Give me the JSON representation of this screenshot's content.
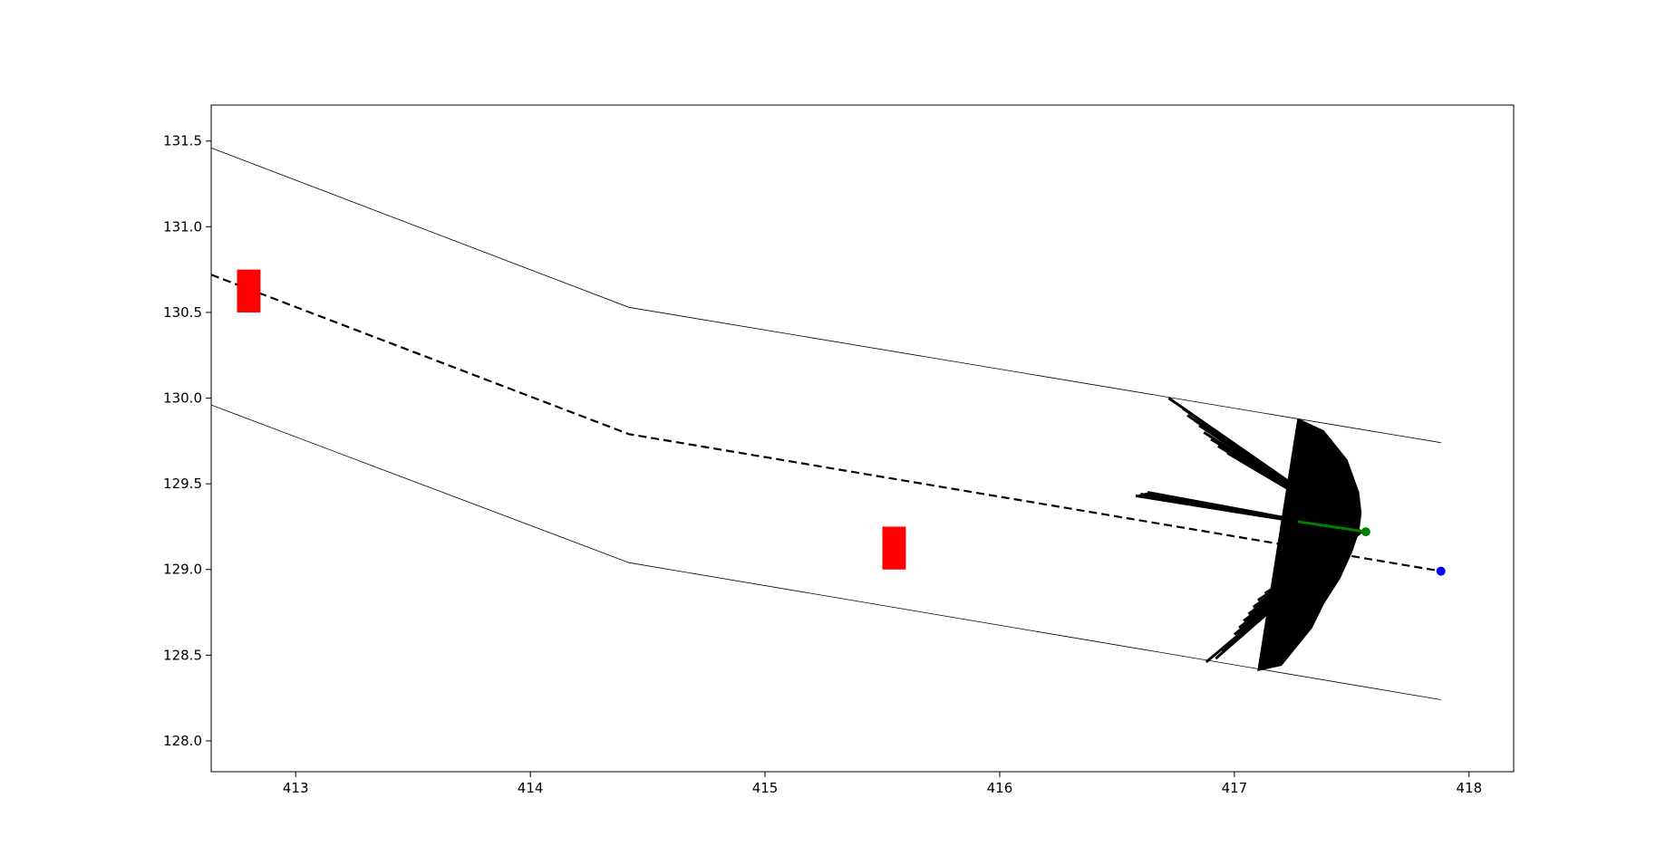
{
  "chart_data": {
    "type": "line",
    "title": "",
    "xlabel": "",
    "ylabel": "",
    "xlim": [
      412.64,
      418.19
    ],
    "ylim": [
      127.82,
      131.71
    ],
    "grid": false,
    "legend": "none",
    "x_ticks": [
      "413",
      "414",
      "415",
      "416",
      "417",
      "418"
    ],
    "y_ticks": [
      "128.0",
      "128.5",
      "129.0",
      "129.5",
      "130.0",
      "130.5",
      "131.0",
      "131.5"
    ],
    "x_tick_values": [
      413,
      414,
      415,
      416,
      417,
      418
    ],
    "y_tick_values": [
      128.0,
      128.5,
      129.0,
      129.5,
      130.0,
      130.5,
      131.0,
      131.5
    ],
    "boundary_upper": {
      "x": [
        412.64,
        414.42,
        417.88
      ],
      "y": [
        131.46,
        130.53,
        129.74
      ]
    },
    "boundary_lower": {
      "x": [
        412.64,
        414.42,
        417.88
      ],
      "y": [
        129.96,
        129.04,
        128.24
      ]
    },
    "reference_path": {
      "x": [
        412.64,
        414.42,
        417.88
      ],
      "y": [
        130.72,
        129.79,
        128.99
      ]
    },
    "obstacles": [
      {
        "x": [
          412.75,
          412.85
        ],
        "y": [
          130.5,
          130.75
        ],
        "color": "#ff0000"
      },
      {
        "x": [
          415.5,
          415.6
        ],
        "y": [
          129.0,
          129.25
        ],
        "color": "#ff0000"
      }
    ],
    "start_point": {
      "x": 417.56,
      "y": 129.22,
      "color": "#008000"
    },
    "goal_point": {
      "x": 417.88,
      "y": 128.99,
      "color": "#0000ff"
    },
    "best_trajectory": {
      "x": [
        417.27,
        417.56
      ],
      "y": [
        129.28,
        129.22
      ],
      "color": "#008000"
    },
    "sampled_trajectories": {
      "origin": {
        "x": 417.54,
        "y": 129.22
      },
      "color": "#000000",
      "upper_endpoints": {
        "x": [
          416.72,
          416.78,
          416.8,
          416.83,
          416.85,
          416.87,
          416.9,
          416.93,
          416.97,
          417.02,
          417.07,
          417.13,
          417.18,
          417.22,
          417.27
        ],
        "y": [
          130.0,
          129.94,
          129.9,
          129.87,
          129.84,
          129.8,
          129.76,
          129.72,
          129.68,
          129.64,
          129.6,
          129.56,
          129.53,
          129.5,
          129.48
        ]
      },
      "middle_endpoints": {
        "x": [
          416.58,
          416.6,
          416.63
        ],
        "y": [
          129.43,
          129.44,
          129.45
        ]
      },
      "lower_endpoints": {
        "x": [
          416.88,
          416.92,
          416.95,
          416.98,
          417.0,
          417.02,
          417.04,
          417.06,
          417.08,
          417.1,
          417.13,
          417.16,
          417.2
        ],
        "y": [
          128.46,
          128.48,
          128.52,
          128.57,
          128.62,
          128.66,
          128.7,
          128.74,
          128.78,
          128.82,
          128.86,
          128.89,
          128.93
        ]
      },
      "outer_envelope": {
        "x": [
          417.27,
          417.38,
          417.48,
          417.53,
          417.54,
          417.53,
          417.5,
          417.45,
          417.38,
          417.33,
          417.2,
          417.1
        ],
        "y": [
          129.88,
          129.81,
          129.64,
          129.45,
          129.33,
          129.22,
          129.1,
          128.95,
          128.8,
          128.66,
          128.44,
          128.41
        ]
      }
    }
  }
}
